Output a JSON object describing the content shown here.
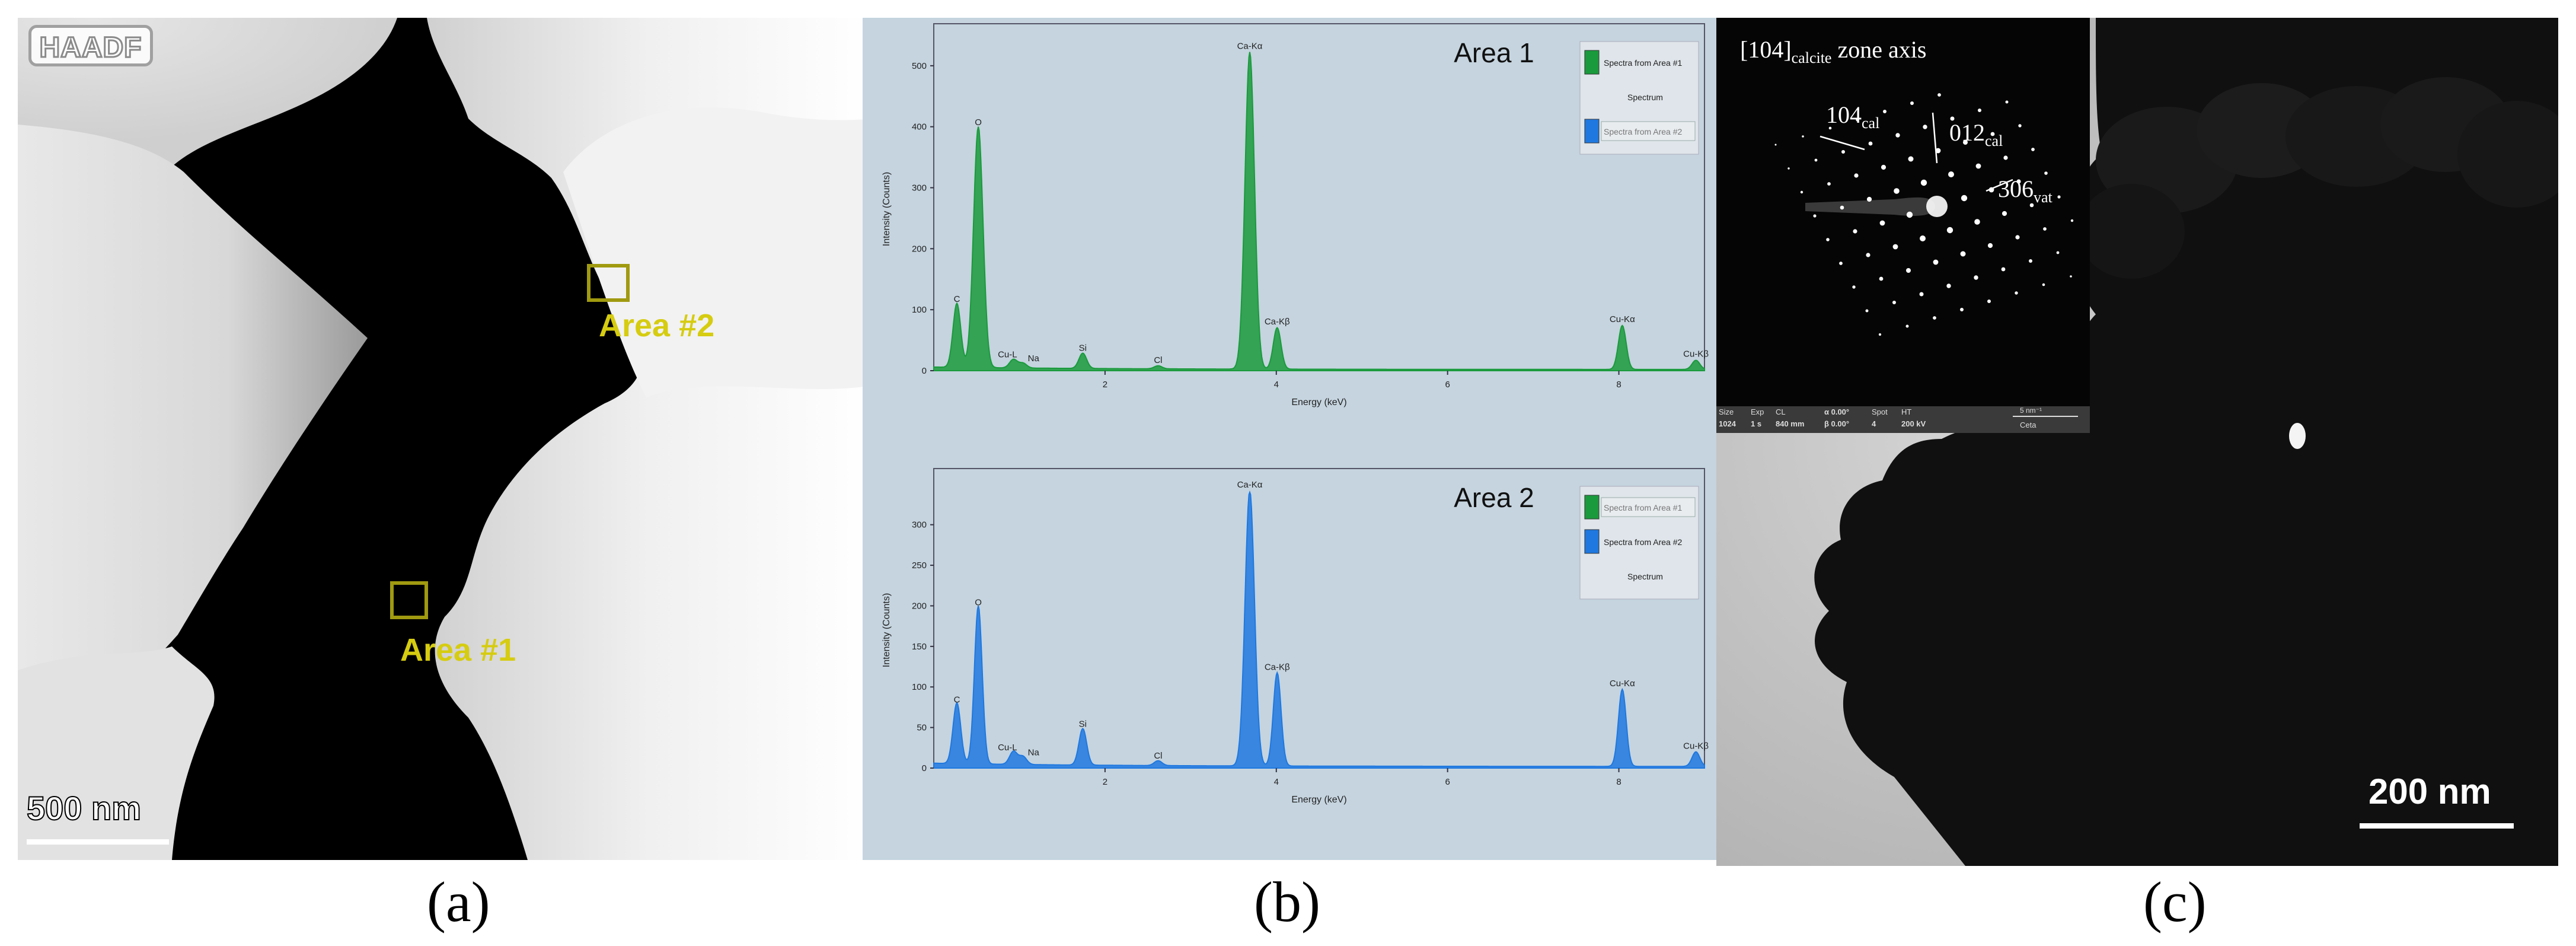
{
  "panel_a": {
    "mode_label": "HAADF",
    "area1_label": "Area #1",
    "area2_label": "Area #2",
    "scale_label": "500 nm",
    "caption": "(a)",
    "box_color": "#c8c010"
  },
  "panel_b": {
    "caption": "(b)",
    "green": "#1a9a3c",
    "blue": "#1f78e0"
  },
  "panel_c": {
    "caption": "(c)",
    "scale_label": "200 nm",
    "saed": {
      "title_main": "[104]",
      "title_sub": "calcite",
      "title_rest": " zone axis",
      "l1_main": "104",
      "l1_sub": "cal",
      "l2_main": "012",
      "l2_sub": "cal",
      "l3_main": "306",
      "l3_sub": "vat",
      "bar": {
        "size_h": "Size",
        "size_v": "1024",
        "exp_h": "Exp",
        "exp_v": "1 s",
        "cl_h": "CL",
        "cl_v": "840 mm",
        "alpha": "α 0.00°",
        "beta": "β 0.00°",
        "spot_h": "Spot",
        "spot_v": "4",
        "ht_h": "HT",
        "ht_v": "200 kV",
        "scale": "5 nm⁻¹",
        "cam": "Ceta"
      }
    }
  },
  "chart_data": [
    {
      "type": "area",
      "title": "Area 1",
      "xlabel": "Energy (keV)",
      "ylabel": "Intensity (Counts)",
      "xlim": [
        0,
        9
      ],
      "ylim": [
        0,
        530
      ],
      "xticks": [
        "2",
        "4",
        "6",
        "8"
      ],
      "yticks": [
        "0",
        "100",
        "200",
        "300",
        "400",
        "500"
      ],
      "legend": [
        "Spectra from Area #1",
        "Spectrum",
        "Spectra from Area #2"
      ],
      "legend_placement": "top-right",
      "series": [
        {
          "name": "Spectra from Area #1",
          "color": "#1a9a3c"
        }
      ],
      "peaks": [
        {
          "label": "C",
          "x": 0.27,
          "y": 105
        },
        {
          "label": "O",
          "x": 0.52,
          "y": 395
        },
        {
          "label": "Cu-L",
          "x": 0.93,
          "y": 14
        },
        {
          "label": "Na",
          "x": 1.04,
          "y": 8
        },
        {
          "label": "Si",
          "x": 1.74,
          "y": 25
        },
        {
          "label": "Cl",
          "x": 2.62,
          "y": 5
        },
        {
          "label": "Ca-Kα",
          "x": 3.69,
          "y": 520
        },
        {
          "label": "Ca-Kβ",
          "x": 4.01,
          "y": 68
        },
        {
          "label": "Cu-Kα",
          "x": 8.04,
          "y": 72
        },
        {
          "label": "Cu-Kβ",
          "x": 8.9,
          "y": 15
        }
      ]
    },
    {
      "type": "area",
      "title": "Area 2",
      "xlabel": "Energy (keV)",
      "ylabel": "Intensity (Counts)",
      "xlim": [
        0,
        9
      ],
      "ylim": [
        0,
        340
      ],
      "xticks": [
        "2",
        "4",
        "6",
        "8"
      ],
      "yticks": [
        "0",
        "50",
        "100",
        "150",
        "200",
        "250",
        "300"
      ],
      "legend": [
        "Spectra from Area #1",
        "Spectra from Area #2",
        "Spectrum"
      ],
      "legend_placement": "top-right",
      "series": [
        {
          "name": "Spectra from Area #2",
          "color": "#1f78e0"
        }
      ],
      "peaks": [
        {
          "label": "C",
          "x": 0.27,
          "y": 75
        },
        {
          "label": "O",
          "x": 0.52,
          "y": 195
        },
        {
          "label": "Cu-L",
          "x": 0.93,
          "y": 16
        },
        {
          "label": "Na",
          "x": 1.04,
          "y": 10
        },
        {
          "label": "Si",
          "x": 1.74,
          "y": 45
        },
        {
          "label": "Cl",
          "x": 2.62,
          "y": 6
        },
        {
          "label": "Ca-Kα",
          "x": 3.69,
          "y": 340
        },
        {
          "label": "Ca-Kβ",
          "x": 4.01,
          "y": 115
        },
        {
          "label": "Cu-Kα",
          "x": 8.04,
          "y": 95
        },
        {
          "label": "Cu-Kβ",
          "x": 8.9,
          "y": 18
        }
      ]
    }
  ]
}
